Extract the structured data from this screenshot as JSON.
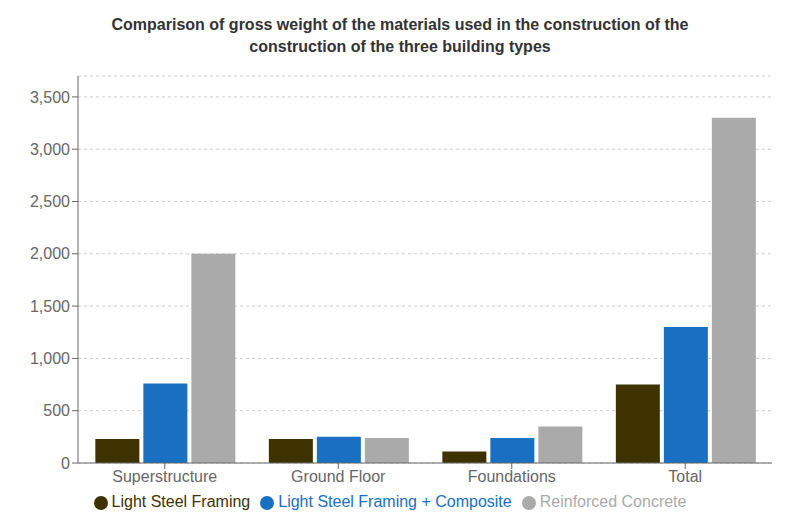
{
  "chart_data": {
    "type": "bar",
    "title": "Comparison of gross weight of the materials used in the construction of the\nconstruction of the three building types",
    "categories": [
      "Superstructure",
      "Ground Floor",
      "Foundations",
      "Total"
    ],
    "series": [
      {
        "name": "Light Steel Framing",
        "color": "#3d3200",
        "values": [
          230,
          230,
          110,
          750
        ]
      },
      {
        "name": "Light Steel Framing + Composite",
        "color": "#1a70c0",
        "values": [
          760,
          250,
          240,
          1300
        ]
      },
      {
        "name": "Reinforced Concrete",
        "color": "#aaaaaa",
        "values": [
          2000,
          240,
          350,
          3300
        ]
      }
    ],
    "ylim": [
      0,
      3700
    ],
    "yticks": [
      0,
      500,
      {
        "value": 1000,
        "label": "1,000"
      },
      {
        "value": 1500,
        "label": "1,500"
      },
      {
        "value": 2000,
        "label": "2,000"
      },
      {
        "value": 2500,
        "label": "2,500"
      },
      {
        "value": 3000,
        "label": "3,000"
      },
      {
        "value": 3500,
        "label": "3,500"
      }
    ],
    "grid": true,
    "legend": "bottom"
  }
}
